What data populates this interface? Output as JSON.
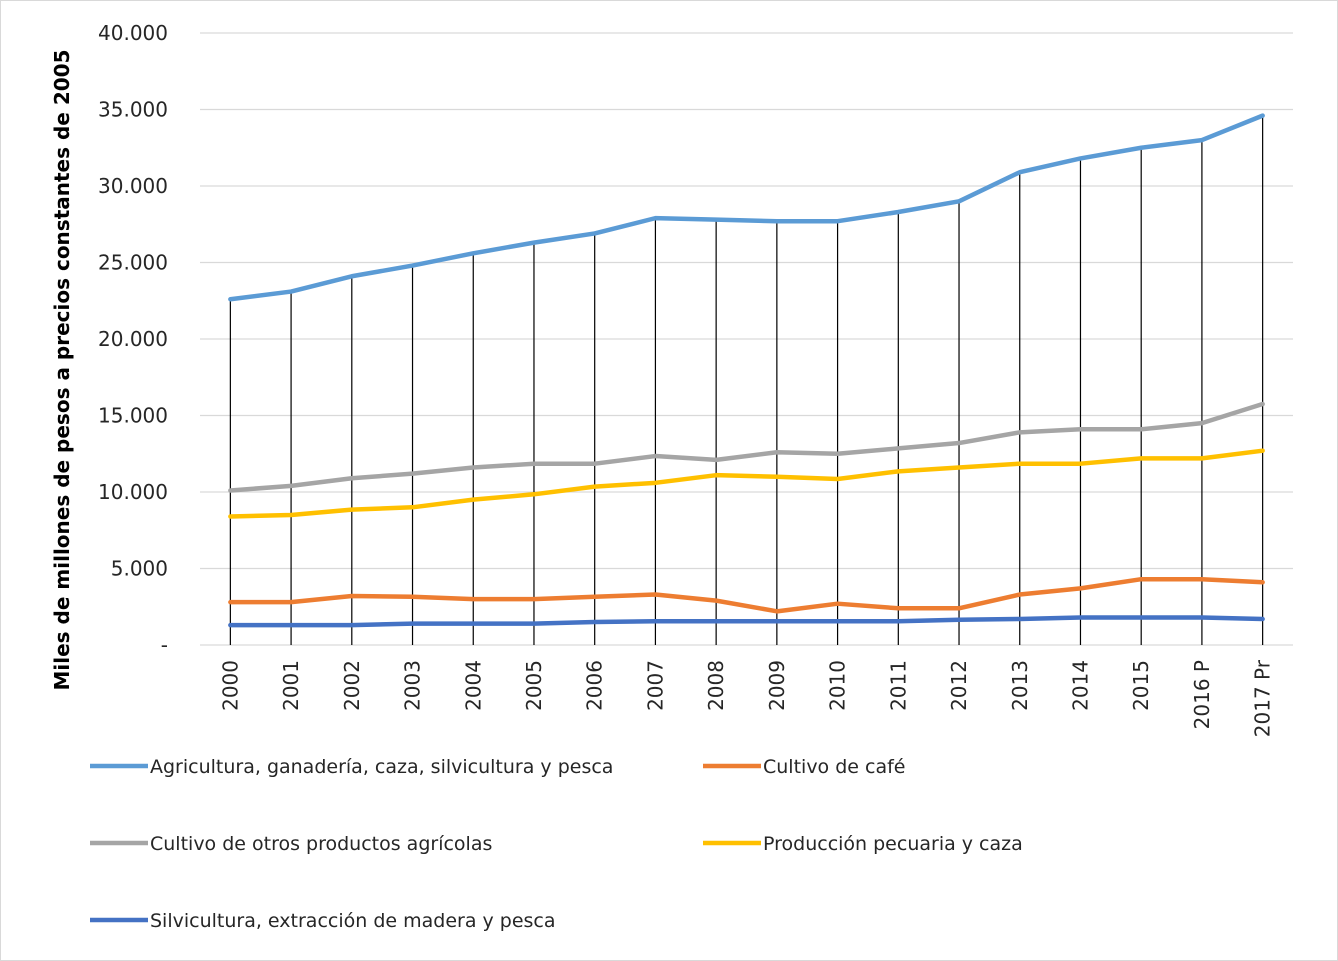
{
  "chart_data": {
    "type": "line",
    "title": "",
    "xlabel": "",
    "ylabel": "Miles de millones de pesos a precios constantes de 2005",
    "categories": [
      "2000",
      "2001",
      "2002",
      "2003",
      "2004",
      "2005",
      "2006",
      "2007",
      "2008",
      "2009",
      "2010",
      "2011",
      "2012",
      "2013",
      "2014",
      "2015",
      "2016 P",
      "2017 Pr"
    ],
    "ylim": [
      0,
      40000
    ],
    "yticks": [
      {
        "value": 0,
        "label": "-"
      },
      {
        "value": 5000,
        "label": "5.000"
      },
      {
        "value": 10000,
        "label": "10.000"
      },
      {
        "value": 15000,
        "label": "15.000"
      },
      {
        "value": 20000,
        "label": "20.000"
      },
      {
        "value": 25000,
        "label": "25.000"
      },
      {
        "value": 30000,
        "label": "30.000"
      },
      {
        "value": 35000,
        "label": "35.000"
      },
      {
        "value": 40000,
        "label": "40.000"
      }
    ],
    "grid": "horizontal",
    "drop_lines": true,
    "legend_position": "bottom",
    "series": [
      {
        "name": "Agricultura, ganadería, caza, silvicultura y pesca",
        "color": "#5b9bd5",
        "values": [
          22600,
          23100,
          24100,
          24800,
          25600,
          26300,
          26900,
          27900,
          27800,
          27700,
          27700,
          28300,
          29000,
          30900,
          31800,
          32500,
          33000,
          34600
        ]
      },
      {
        "name": "Cultivo de café",
        "color": "#ed7d31",
        "values": [
          2800,
          2800,
          3200,
          3150,
          3000,
          3000,
          3150,
          3300,
          2900,
          2200,
          2700,
          2400,
          2400,
          3300,
          3700,
          4300,
          4300,
          4100
        ]
      },
      {
        "name": "Cultivo de otros productos agrícolas",
        "color": "#a5a5a5",
        "values": [
          10100,
          10400,
          10900,
          11200,
          11600,
          11850,
          11850,
          12350,
          12100,
          12600,
          12500,
          12850,
          13200,
          13900,
          14100,
          14100,
          14500,
          15750
        ]
      },
      {
        "name": "Producción pecuaria y caza",
        "color": "#ffc000",
        "values": [
          8400,
          8500,
          8850,
          9000,
          9500,
          9850,
          10350,
          10600,
          11100,
          11000,
          10850,
          11350,
          11600,
          11850,
          11850,
          12200,
          12200,
          12700
        ]
      },
      {
        "name": "Silvicultura, extracción de madera y pesca",
        "color": "#4472c4",
        "values": [
          1300,
          1300,
          1300,
          1400,
          1400,
          1400,
          1500,
          1550,
          1550,
          1550,
          1550,
          1550,
          1650,
          1700,
          1800,
          1800,
          1800,
          1700
        ]
      }
    ]
  }
}
